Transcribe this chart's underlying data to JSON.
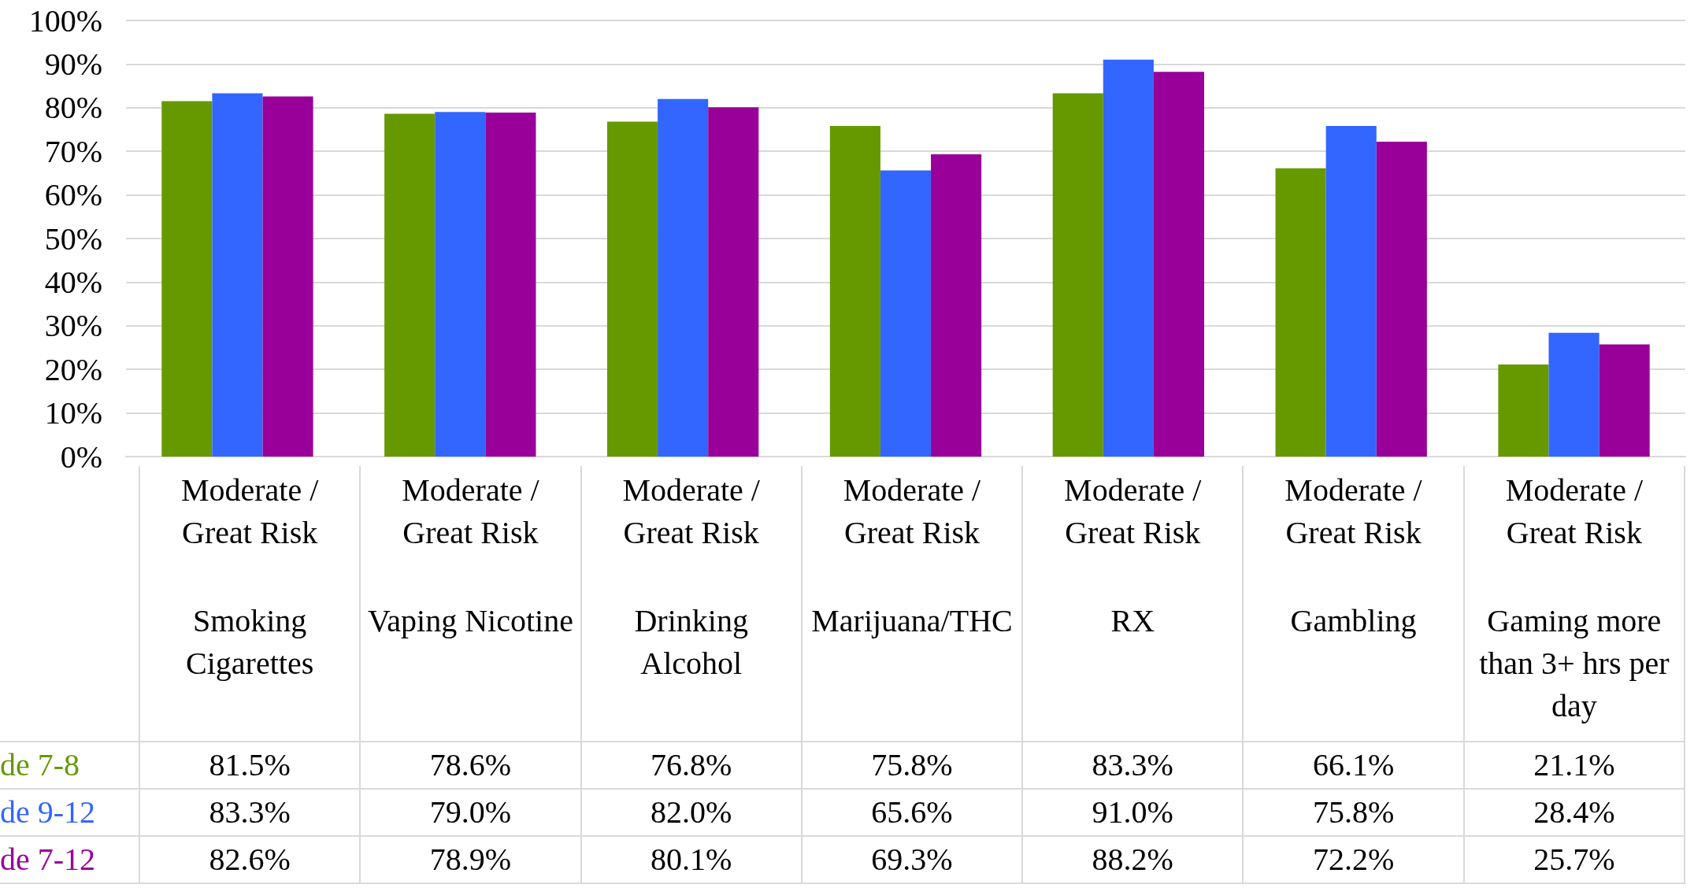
{
  "chart_data": {
    "type": "bar",
    "categories": [
      "Moderate / Great Risk\nSmoking Cigarettes",
      "Moderate / Great Risk\nVaping Nicotine",
      "Moderate / Great Risk\nDrinking Alcohol",
      "Moderate / Great Risk\nMarijuana/THC",
      "Moderate / Great Risk\nRX",
      "Moderate / Great Risk\nGambling",
      "Moderate / Great Risk\nGaming more than 3+ hrs per day"
    ],
    "series": [
      {
        "name": "de 7-8",
        "color": "#669900",
        "values": [
          81.5,
          78.6,
          76.8,
          75.8,
          83.3,
          66.1,
          21.1
        ],
        "value_labels": [
          "81.5%",
          "78.6%",
          "76.8%",
          "75.8%",
          "83.3%",
          "66.1%",
          "21.1%"
        ]
      },
      {
        "name": "de 9-12",
        "color": "#3366ff",
        "values": [
          83.3,
          79.0,
          82.0,
          65.6,
          91.0,
          75.8,
          28.4
        ],
        "value_labels": [
          "83.3%",
          "79.0%",
          "82.0%",
          "65.6%",
          "91.0%",
          "75.8%",
          "28.4%"
        ]
      },
      {
        "name": "de 7-12",
        "color": "#990099",
        "values": [
          82.6,
          78.9,
          80.1,
          69.3,
          88.2,
          72.2,
          25.7
        ],
        "value_labels": [
          "82.6%",
          "78.9%",
          "80.1%",
          "69.3%",
          "88.2%",
          "72.2%",
          "25.7%"
        ]
      }
    ],
    "ylim": [
      0,
      100
    ],
    "yticks": [
      {
        "value": 0,
        "label": "0%"
      },
      {
        "value": 10,
        "label": "10%"
      },
      {
        "value": 20,
        "label": "20%"
      },
      {
        "value": 30,
        "label": "30%"
      },
      {
        "value": 40,
        "label": "40%"
      },
      {
        "value": 50,
        "label": "50%"
      },
      {
        "value": 60,
        "label": "60%"
      },
      {
        "value": 70,
        "label": "70%"
      },
      {
        "value": 80,
        "label": "80%"
      },
      {
        "value": 90,
        "label": "90%"
      },
      {
        "value": 100,
        "label": "100%"
      }
    ],
    "grid": "y"
  }
}
